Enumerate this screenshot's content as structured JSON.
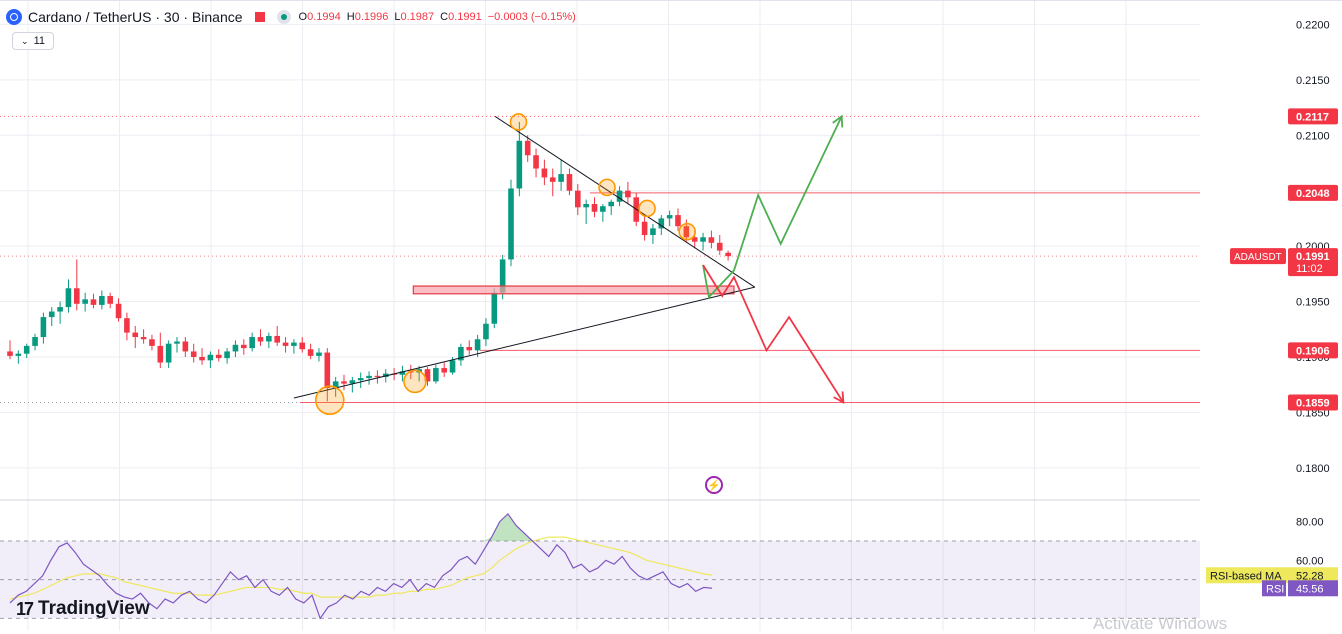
{
  "header": {
    "symbol": "Cardano / TetherUS · 30 · Binance",
    "o_label": "O",
    "o": "0.1994",
    "h_label": "H",
    "h": "0.1996",
    "l_label": "L",
    "l": "0.1987",
    "c_label": "C",
    "c": "0.1991",
    "change": "−0.0003 (−0.15%)"
  },
  "collapse_count": "11",
  "branding": {
    "name": "TradingView",
    "mark": "17"
  },
  "watermark": "Activate Windows",
  "colors": {
    "up": "#089981",
    "down": "#f23645",
    "rsi": "#7e57c2",
    "rsi_ma": "#eee85c",
    "projection_up": "#4caf50",
    "projection_down": "#f23645",
    "grid": "#ebedf2"
  },
  "chart_data": [
    {
      "type": "candlestick",
      "symbol": "ADAUSDT",
      "timeframe": "30",
      "exchange": "Binance",
      "ylim": [
        0.1771,
        0.2213
      ],
      "y_ticks": [
        0.18,
        0.185,
        0.19,
        0.195,
        0.2,
        0.205,
        0.21,
        0.215,
        0.22
      ],
      "y_tick_labels": [
        "0.1800",
        "0.1850",
        "0.1900",
        "0.1950",
        "0.2000",
        "0.2050",
        "0.2100",
        "0.2150",
        "0.2200"
      ],
      "price_tags": [
        {
          "label": "0.2117",
          "value": 0.2117
        },
        {
          "label": "0.2048",
          "value": 0.2048
        },
        {
          "label": "0.1906",
          "value": 0.1906
        },
        {
          "label": "0.1859",
          "value": 0.1859
        }
      ],
      "current_price": {
        "symbol": "ADAUSDT",
        "value_label": "0.1991",
        "value": 0.1991,
        "countdown": "11:02"
      },
      "horizontal_levels": [
        0.2117,
        0.2048,
        0.1906,
        0.1859,
        0.1991
      ],
      "candles": [
        [
          0.1905,
          0.1915,
          0.1898,
          0.1901
        ],
        [
          0.1901,
          0.1906,
          0.1894,
          0.1903
        ],
        [
          0.1903,
          0.1912,
          0.1899,
          0.191
        ],
        [
          0.191,
          0.1921,
          0.1906,
          0.1918
        ],
        [
          0.1918,
          0.194,
          0.1912,
          0.1936
        ],
        [
          0.1936,
          0.1945,
          0.1928,
          0.1941
        ],
        [
          0.1941,
          0.195,
          0.193,
          0.1945
        ],
        [
          0.1945,
          0.197,
          0.194,
          0.1962
        ],
        [
          0.1962,
          0.1988,
          0.1942,
          0.1948
        ],
        [
          0.1948,
          0.1958,
          0.1941,
          0.1952
        ],
        [
          0.1952,
          0.1957,
          0.1944,
          0.1947
        ],
        [
          0.1947,
          0.196,
          0.1943,
          0.1955
        ],
        [
          0.1955,
          0.1958,
          0.1944,
          0.1948
        ],
        [
          0.1948,
          0.1953,
          0.1932,
          0.1935
        ],
        [
          0.1935,
          0.194,
          0.1915,
          0.1922
        ],
        [
          0.1922,
          0.1928,
          0.1908,
          0.1918
        ],
        [
          0.1918,
          0.1925,
          0.1912,
          0.1916
        ],
        [
          0.1916,
          0.192,
          0.1906,
          0.191
        ],
        [
          0.191,
          0.1922,
          0.189,
          0.1895
        ],
        [
          0.1895,
          0.1915,
          0.189,
          0.1912
        ],
        [
          0.1912,
          0.1918,
          0.1904,
          0.1914
        ],
        [
          0.1914,
          0.1918,
          0.19,
          0.1905
        ],
        [
          0.1905,
          0.1912,
          0.1895,
          0.19
        ],
        [
          0.19,
          0.1908,
          0.1893,
          0.1897
        ],
        [
          0.1897,
          0.1905,
          0.189,
          0.1902
        ],
        [
          0.1902,
          0.1907,
          0.1896,
          0.1899
        ],
        [
          0.1899,
          0.1908,
          0.1894,
          0.1905
        ],
        [
          0.1905,
          0.1915,
          0.19,
          0.1911
        ],
        [
          0.1911,
          0.1916,
          0.1902,
          0.1908
        ],
        [
          0.1908,
          0.1922,
          0.1905,
          0.1918
        ],
        [
          0.1918,
          0.1925,
          0.191,
          0.1914
        ],
        [
          0.1914,
          0.1922,
          0.1908,
          0.1919
        ],
        [
          0.1919,
          0.1928,
          0.191,
          0.1913
        ],
        [
          0.1913,
          0.1918,
          0.1904,
          0.191
        ],
        [
          0.191,
          0.1916,
          0.1903,
          0.1913
        ],
        [
          0.1913,
          0.1918,
          0.1904,
          0.1907
        ],
        [
          0.1907,
          0.1912,
          0.1898,
          0.1901
        ],
        [
          0.1901,
          0.1908,
          0.1896,
          0.1904
        ],
        [
          0.1904,
          0.1908,
          0.186,
          0.1872
        ],
        [
          0.1872,
          0.1882,
          0.1864,
          0.1878
        ],
        [
          0.1878,
          0.1884,
          0.187,
          0.1876
        ],
        [
          0.1876,
          0.1882,
          0.1868,
          0.1879
        ],
        [
          0.1879,
          0.1886,
          0.1872,
          0.1881
        ],
        [
          0.1881,
          0.1887,
          0.1875,
          0.1883
        ],
        [
          0.1883,
          0.1888,
          0.1876,
          0.1882
        ],
        [
          0.1882,
          0.1889,
          0.1877,
          0.1885
        ],
        [
          0.1885,
          0.189,
          0.1879,
          0.1884
        ],
        [
          0.1884,
          0.1892,
          0.1878,
          0.1887
        ],
        [
          0.1887,
          0.1893,
          0.188,
          0.1886
        ],
        [
          0.1886,
          0.1892,
          0.1878,
          0.1889
        ],
        [
          0.1889,
          0.1891,
          0.1874,
          0.1878
        ],
        [
          0.1878,
          0.1893,
          0.1876,
          0.189
        ],
        [
          0.189,
          0.1895,
          0.1882,
          0.1886
        ],
        [
          0.1886,
          0.19,
          0.1884,
          0.1897
        ],
        [
          0.1897,
          0.1912,
          0.1892,
          0.1909
        ],
        [
          0.1909,
          0.1915,
          0.1902,
          0.1906
        ],
        [
          0.1906,
          0.192,
          0.19,
          0.1916
        ],
        [
          0.1916,
          0.1935,
          0.191,
          0.193
        ],
        [
          0.193,
          0.1962,
          0.1926,
          0.1958
        ],
        [
          0.1958,
          0.1992,
          0.1952,
          0.1988
        ],
        [
          0.1988,
          0.206,
          0.1982,
          0.2052
        ],
        [
          0.2052,
          0.2112,
          0.2045,
          0.2095
        ],
        [
          0.2095,
          0.21,
          0.2076,
          0.2082
        ],
        [
          0.2082,
          0.2088,
          0.2062,
          0.207
        ],
        [
          0.207,
          0.2078,
          0.2055,
          0.2062
        ],
        [
          0.2062,
          0.207,
          0.2045,
          0.2058
        ],
        [
          0.2058,
          0.2078,
          0.205,
          0.2065
        ],
        [
          0.2065,
          0.207,
          0.2046,
          0.205
        ],
        [
          0.205,
          0.2056,
          0.2028,
          0.2035
        ],
        [
          0.2035,
          0.2042,
          0.202,
          0.2038
        ],
        [
          0.2038,
          0.2044,
          0.2026,
          0.2031
        ],
        [
          0.2031,
          0.2038,
          0.2022,
          0.2036
        ],
        [
          0.2036,
          0.2042,
          0.2028,
          0.204
        ],
        [
          0.204,
          0.2054,
          0.2036,
          0.205
        ],
        [
          0.205,
          0.2058,
          0.2038,
          0.2044
        ],
        [
          0.2044,
          0.2048,
          0.2018,
          0.2022
        ],
        [
          0.2022,
          0.2028,
          0.2005,
          0.201
        ],
        [
          0.201,
          0.202,
          0.2002,
          0.2016
        ],
        [
          0.2016,
          0.2028,
          0.201,
          0.2025
        ],
        [
          0.2025,
          0.2032,
          0.2018,
          0.2028
        ],
        [
          0.2028,
          0.2034,
          0.2014,
          0.2018
        ],
        [
          0.2018,
          0.2024,
          0.2004,
          0.2008
        ],
        [
          0.2008,
          0.2014,
          0.1998,
          0.2004
        ],
        [
          0.2004,
          0.2012,
          0.1996,
          0.2008
        ],
        [
          0.2008,
          0.2014,
          0.1998,
          0.2003
        ],
        [
          0.2003,
          0.201,
          0.1992,
          0.1996
        ],
        [
          0.1994,
          0.1996,
          0.1987,
          0.1991
        ]
      ],
      "annotations": {
        "circles": [
          [
            38.3,
            0.1861
          ],
          [
            48.5,
            0.1878
          ],
          [
            60.9,
            0.2112
          ],
          [
            71.5,
            0.2053
          ],
          [
            76.3,
            0.2034
          ],
          [
            81.1,
            0.2013
          ]
        ],
        "trendlines": [
          [
            [
              34,
              0.1863
            ],
            [
              89.2,
              0.1963
            ]
          ],
          [
            [
              58.1,
              0.2117
            ],
            [
              89.2,
              0.1963
            ]
          ]
        ],
        "zone": {
          "x0": 48.3,
          "x1": 86.7,
          "top": 0.1964,
          "bottom": 0.1957
        },
        "green_path": [
          [
            83,
            0.1983
          ],
          [
            83.7,
            0.1954
          ],
          [
            86.7,
            0.1978
          ],
          [
            89.6,
            0.2046
          ],
          [
            92.3,
            0.2002
          ],
          [
            99.6,
            0.2117
          ]
        ],
        "red_path": [
          [
            83,
            0.1983
          ],
          [
            85.3,
            0.1955
          ],
          [
            86.7,
            0.1972
          ],
          [
            90.6,
            0.1906
          ],
          [
            93.3,
            0.1936
          ],
          [
            99.8,
            0.1859
          ]
        ]
      }
    },
    {
      "type": "line",
      "name": "RSI",
      "ylim": [
        24,
        86
      ],
      "y_ticks": [
        60,
        80
      ],
      "y_tick_labels": [
        "60.00",
        "80.00"
      ],
      "band": [
        30,
        70
      ],
      "series": [
        {
          "name": "RSI",
          "value_label": "45.56",
          "values": [
            38,
            42,
            44,
            48,
            52,
            60,
            67,
            69,
            64,
            58,
            55,
            52,
            47,
            43,
            41,
            40,
            43,
            38,
            35,
            40,
            38,
            42,
            44,
            40,
            38,
            42,
            48,
            54,
            50,
            52,
            46,
            50,
            44,
            42,
            46,
            40,
            38,
            42,
            30,
            36,
            38,
            42,
            40,
            44,
            42,
            46,
            44,
            48,
            46,
            50,
            44,
            48,
            46,
            52,
            55,
            60,
            62,
            58,
            65,
            72,
            80,
            84,
            78,
            74,
            70,
            66,
            62,
            68,
            64,
            56,
            58,
            54,
            56,
            60,
            58,
            62,
            56,
            52,
            50,
            52,
            54,
            48,
            46,
            48,
            44,
            46,
            45.56
          ]
        },
        {
          "name": "RSI-based MA",
          "value_label": "52.28",
          "values": [
            40,
            41,
            42,
            43,
            45,
            47,
            49,
            51,
            52,
            53,
            53,
            53,
            52,
            51,
            49,
            48,
            47,
            46,
            45,
            44,
            43,
            43,
            43,
            42,
            42,
            42,
            43,
            44,
            45,
            46,
            46,
            46,
            46,
            45,
            45,
            44,
            43,
            43,
            41,
            41,
            41,
            41,
            41,
            41,
            41,
            42,
            42,
            43,
            43,
            44,
            44,
            45,
            45,
            46,
            47,
            49,
            51,
            52,
            53,
            56,
            60,
            63,
            66,
            68,
            70,
            71,
            72,
            72,
            72,
            71,
            70,
            69,
            68,
            67,
            66,
            65,
            64,
            62,
            60,
            59,
            58,
            57,
            56,
            55,
            54,
            53,
            52.28
          ]
        }
      ]
    }
  ]
}
